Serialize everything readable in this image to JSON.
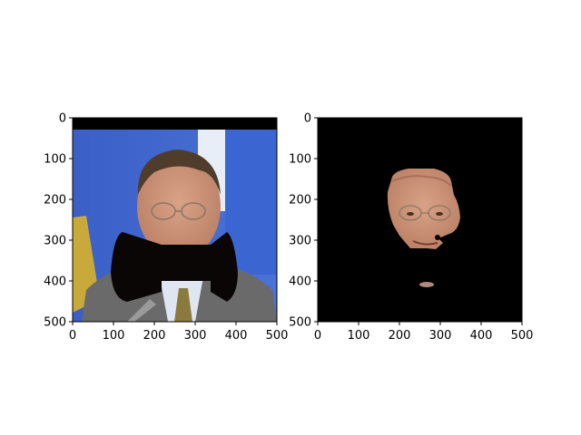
{
  "figure": {
    "panels": [
      {
        "id": "left",
        "description_role": "original-with-occluder",
        "x_ticks": [
          "0",
          "100",
          "200",
          "300",
          "400",
          "500"
        ],
        "y_ticks": [
          "0",
          "100",
          "200",
          "300",
          "400",
          "500"
        ],
        "xlim": [
          0,
          500
        ],
        "ylim": [
          500,
          0
        ]
      },
      {
        "id": "right",
        "description_role": "face-mask-result",
        "x_ticks": [
          "0",
          "100",
          "200",
          "300",
          "400",
          "500"
        ],
        "y_ticks": [
          "0",
          "100",
          "200",
          "300",
          "400",
          "500"
        ],
        "xlim": [
          0,
          500
        ],
        "ylim": [
          500,
          0
        ]
      }
    ],
    "colors": {
      "background": "#ffffff",
      "axis": "#000000",
      "mask": "#000000",
      "wall_blue": "#3f63c8",
      "flag_yellow": "#c9a93a",
      "skin": "#c89478",
      "hair": "#5a4632",
      "suit": "#6e6e6e"
    }
  }
}
